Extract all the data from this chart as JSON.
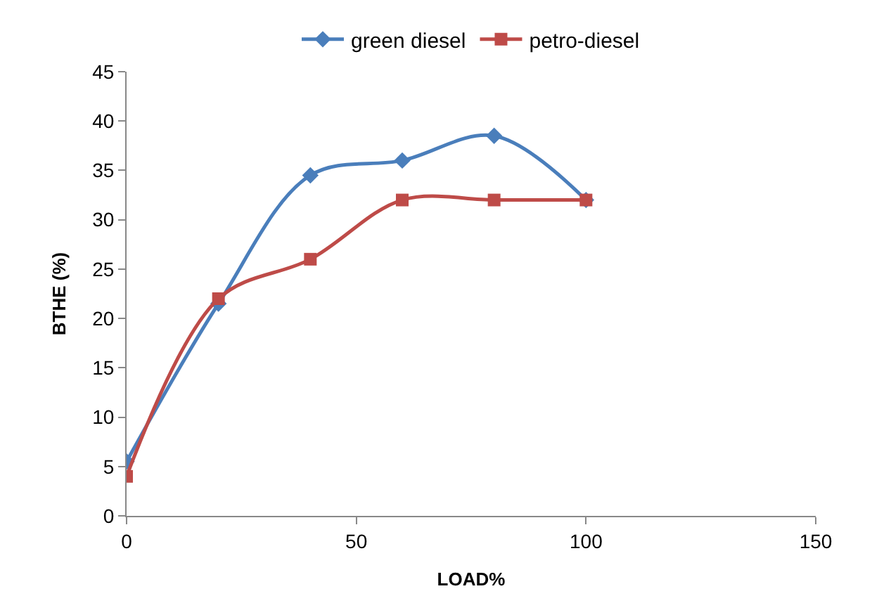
{
  "chart_data": {
    "type": "line",
    "xlabel": "LOAD%",
    "ylabel": "BTHE (%)",
    "x": [
      0,
      20,
      40,
      60,
      80,
      100
    ],
    "series": [
      {
        "name": "green diesel",
        "color": "#4a7ebb",
        "marker": "diamond",
        "values": [
          5.5,
          21.5,
          34.5,
          36,
          38.5,
          32
        ]
      },
      {
        "name": "petro-diesel",
        "color": "#be4b48",
        "marker": "square",
        "values": [
          4,
          22,
          26,
          32,
          32,
          32
        ]
      }
    ],
    "xlim": [
      0,
      150
    ],
    "xticks": [
      0,
      50,
      100,
      150
    ],
    "ylim": [
      0,
      45
    ],
    "yticks": [
      0,
      5,
      10,
      15,
      20,
      25,
      30,
      35,
      40,
      45
    ],
    "legend": "top",
    "line_style": "solid"
  }
}
